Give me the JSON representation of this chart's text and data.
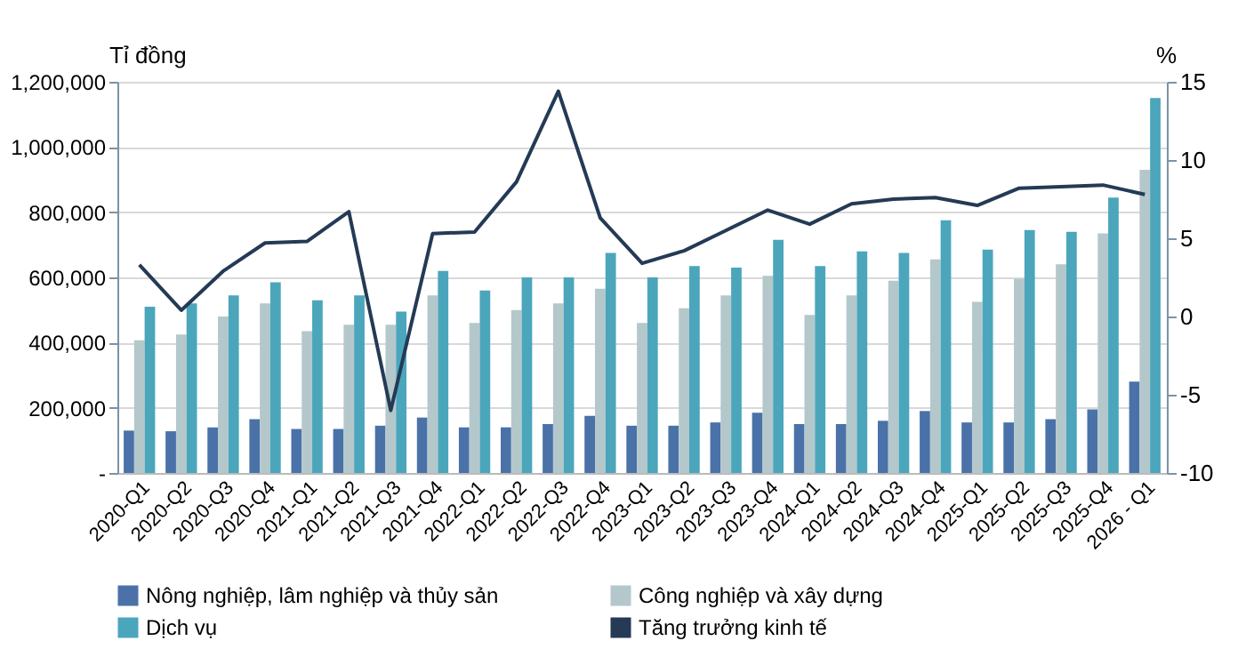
{
  "chart_data": {
    "type": "bar",
    "ylabel": "Tỉ đồng",
    "y2label": "%",
    "categories": [
      "2020-Q1",
      "2020-Q2",
      "2020-Q3",
      "2020-Q4",
      "2021-Q1",
      "2021-Q2",
      "2021-Q3",
      "2021-Q4",
      "2022-Q1",
      "2022-Q2",
      "2022-Q3",
      "2022-Q4",
      "2023-Q1",
      "2023-Q2",
      "2023-Q3",
      "2023-Q4",
      "2024-Q1",
      "2024-Q2",
      "2024-Q3",
      "2024-Q4",
      "2025-Q1",
      "2025-Q2",
      "2025-Q3",
      "2025-Q4",
      "2026 - Q1"
    ],
    "series": [
      {
        "name": "Nông nghiệp, lâm nghiệp và thủy sản",
        "color": "#4a72a8",
        "values": [
          130000,
          128000,
          140000,
          165000,
          135000,
          135000,
          145000,
          170000,
          140000,
          140000,
          150000,
          175000,
          145000,
          145000,
          155000,
          185000,
          150000,
          150000,
          160000,
          190000,
          155000,
          155000,
          165000,
          195000,
          280000
        ]
      },
      {
        "name": "Công nghiệp và xây dựng",
        "color": "#b4c8cc",
        "values": [
          407000,
          425000,
          480000,
          520000,
          435000,
          455000,
          455000,
          545000,
          460000,
          500000,
          520000,
          565000,
          460000,
          505000,
          545000,
          605000,
          485000,
          545000,
          590000,
          655000,
          525000,
          595000,
          640000,
          735000,
          930000
        ]
      },
      {
        "name": "Dịch vụ",
        "color": "#4ba6bc",
        "values": [
          510000,
          520000,
          545000,
          585000,
          530000,
          545000,
          495000,
          620000,
          560000,
          600000,
          600000,
          675000,
          600000,
          635000,
          630000,
          715000,
          635000,
          680000,
          675000,
          775000,
          685000,
          745000,
          740000,
          845000,
          1150000
        ]
      },
      {
        "name": "Tăng trưởng kinh tế",
        "type": "line",
        "axis": "y2",
        "color": "#243a55",
        "values": [
          3.3,
          0.4,
          2.9,
          4.7,
          4.8,
          6.7,
          -6.0,
          5.3,
          5.4,
          8.6,
          14.4,
          6.3,
          3.4,
          4.2,
          5.5,
          6.8,
          5.9,
          7.2,
          7.5,
          7.6,
          7.1,
          8.2,
          8.3,
          8.4,
          7.8
        ]
      }
    ],
    "ylim": [
      0,
      1200000
    ],
    "yticks": [
      {
        "value": 0,
        "label": "-"
      },
      {
        "value": 200000,
        "label": "200,000"
      },
      {
        "value": 400000,
        "label": "400,000"
      },
      {
        "value": 600000,
        "label": "600,000"
      },
      {
        "value": 800000,
        "label": "800,000"
      },
      {
        "value": 1000000,
        "label": "1,000,000"
      },
      {
        "value": 1200000,
        "label": "1,200,000"
      }
    ],
    "y2lim": [
      -10,
      15
    ],
    "y2ticks": [
      -10,
      -5,
      0,
      5,
      10,
      15
    ],
    "grid": "y",
    "legend": "bottom",
    "marker": "none"
  }
}
